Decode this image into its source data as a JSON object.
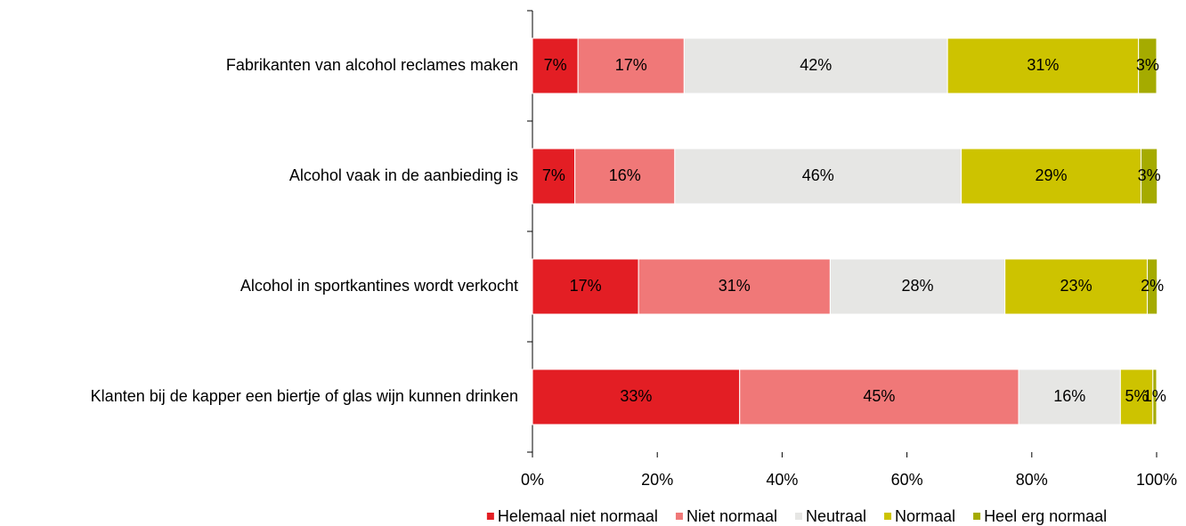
{
  "chart_data": {
    "type": "stacked-barh",
    "categories": [
      "Fabrikanten van alcohol reclames maken",
      "Alcohol vaak in de aanbieding is",
      "Alcohol in sportkantines wordt verkocht",
      "Klanten bij de kapper een biertje of glas wijn kunnen drinken"
    ],
    "series": [
      {
        "name": "Helemaal niet normaal",
        "color": "#e31e24",
        "label_color": "#ffffff",
        "values": [
          7.3,
          6.8,
          17,
          33.2
        ],
        "value_labels": [
          "7%",
          "7%",
          "17%",
          "33%"
        ]
      },
      {
        "name": "Niet normaal",
        "color": "#f07878",
        "label_color": "#ffffff",
        "values": [
          17,
          16,
          30.7,
          44.7
        ],
        "value_labels": [
          "17%",
          "16%",
          "31%",
          "45%"
        ]
      },
      {
        "name": "Neutraal",
        "color": "#e6e6e4",
        "label_color": "#000000",
        "values": [
          42.2,
          45.9,
          28,
          16.3
        ],
        "value_labels": [
          "42%",
          "46%",
          "28%",
          "16%"
        ]
      },
      {
        "name": "Normaal",
        "color": "#cdc300",
        "label_color": "#ffffff",
        "values": [
          30.6,
          28.8,
          22.8,
          5.2
        ],
        "value_labels": [
          "31%",
          "29%",
          "23%",
          "5%"
        ]
      },
      {
        "name": "Heel erg normaal",
        "color": "#a5ab00",
        "label_color": "#ffffff",
        "values": [
          2.9,
          2.6,
          1.6,
          0.6
        ],
        "value_labels": [
          "3%",
          "3%",
          "2%",
          "1%"
        ]
      }
    ],
    "xlim": [
      0,
      100
    ],
    "xticks": [
      {
        "value": 0,
        "label": "0%"
      },
      {
        "value": 20,
        "label": "20%"
      },
      {
        "value": 40,
        "label": "40%"
      },
      {
        "value": 60,
        "label": "60%"
      },
      {
        "value": 80,
        "label": "80%"
      },
      {
        "value": 100,
        "label": "100%"
      }
    ],
    "legend": "bottom"
  }
}
